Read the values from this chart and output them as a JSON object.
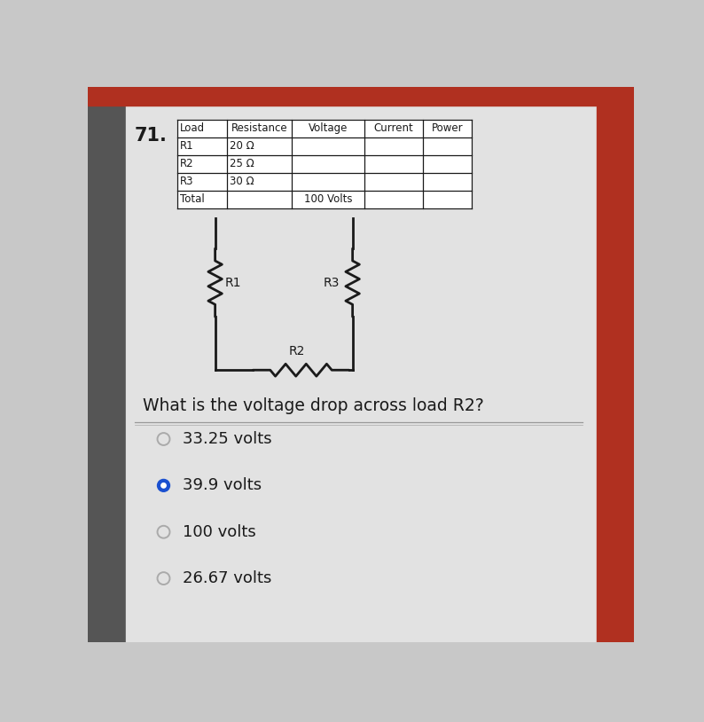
{
  "question_number": "71.",
  "table": {
    "headers": [
      "Load",
      "Resistance",
      "Voltage",
      "Current",
      "Power"
    ],
    "rows": [
      [
        "R1",
        "20 Ω",
        "",
        "",
        ""
      ],
      [
        "R2",
        "25 Ω",
        "",
        "",
        ""
      ],
      [
        "R3",
        "30 Ω",
        "",
        "",
        ""
      ],
      [
        "Total",
        "",
        "100 Volts",
        "",
        ""
      ]
    ]
  },
  "question_text": "What is the voltage drop across load R2?",
  "options": [
    {
      "label": "33.25 volts",
      "selected": false
    },
    {
      "label": "39.9 volts",
      "selected": true
    },
    {
      "label": "100 volts",
      "selected": false
    },
    {
      "label": "26.67 volts",
      "selected": false
    }
  ],
  "bg_color": "#c8c8c8",
  "card_color": "#e0e0e0",
  "line_color": "#1a1a1a",
  "table_bg": "#ffffff",
  "selected_color": "#1a50d0",
  "unselected_color": "#777777",
  "right_bar_color": "#b03020",
  "top_bar_color": "#b03020"
}
